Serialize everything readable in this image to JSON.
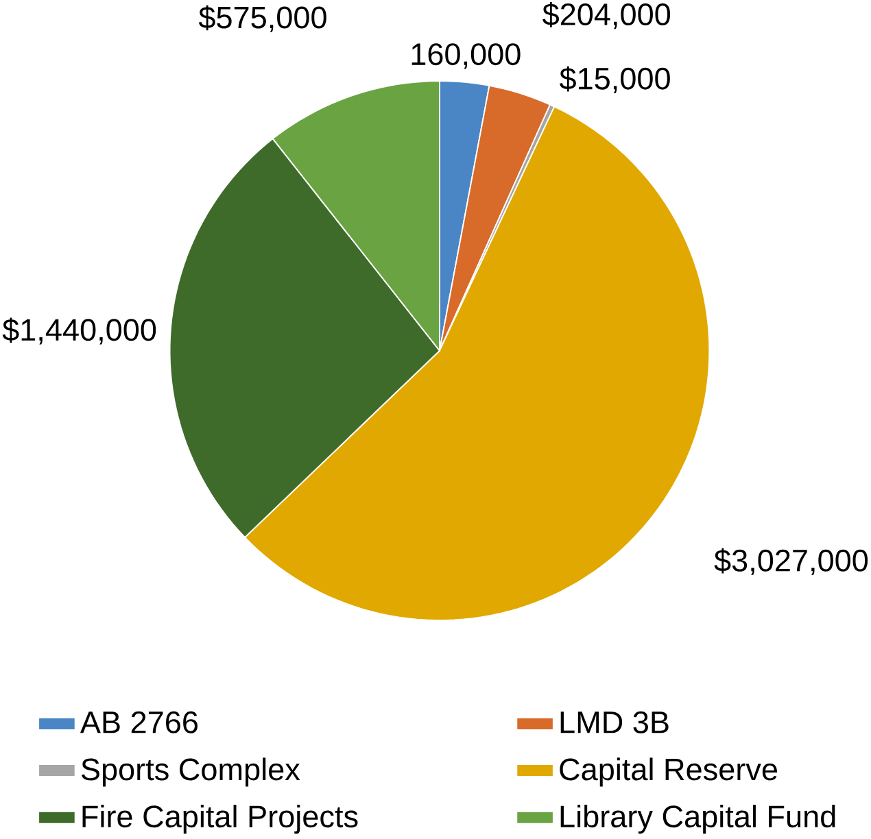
{
  "chart_data": {
    "type": "pie",
    "categories": [
      "AB 2766",
      "LMD 3B",
      "Sports Complex",
      "Capital Reserve",
      "Fire Capital Projects",
      "Library Capital Fund"
    ],
    "values": [
      160000,
      204000,
      15000,
      3027000,
      1440000,
      575000
    ],
    "value_labels": [
      "160,000",
      "$204,000",
      "$15,000",
      "$3,027,000",
      "$1,440,000",
      "$575,000"
    ],
    "colors": [
      "#4a86c5",
      "#d86a2a",
      "#a5a5a5",
      "#e0a800",
      "#3f6b2a",
      "#6aa342"
    ],
    "legend": "bottom"
  }
}
